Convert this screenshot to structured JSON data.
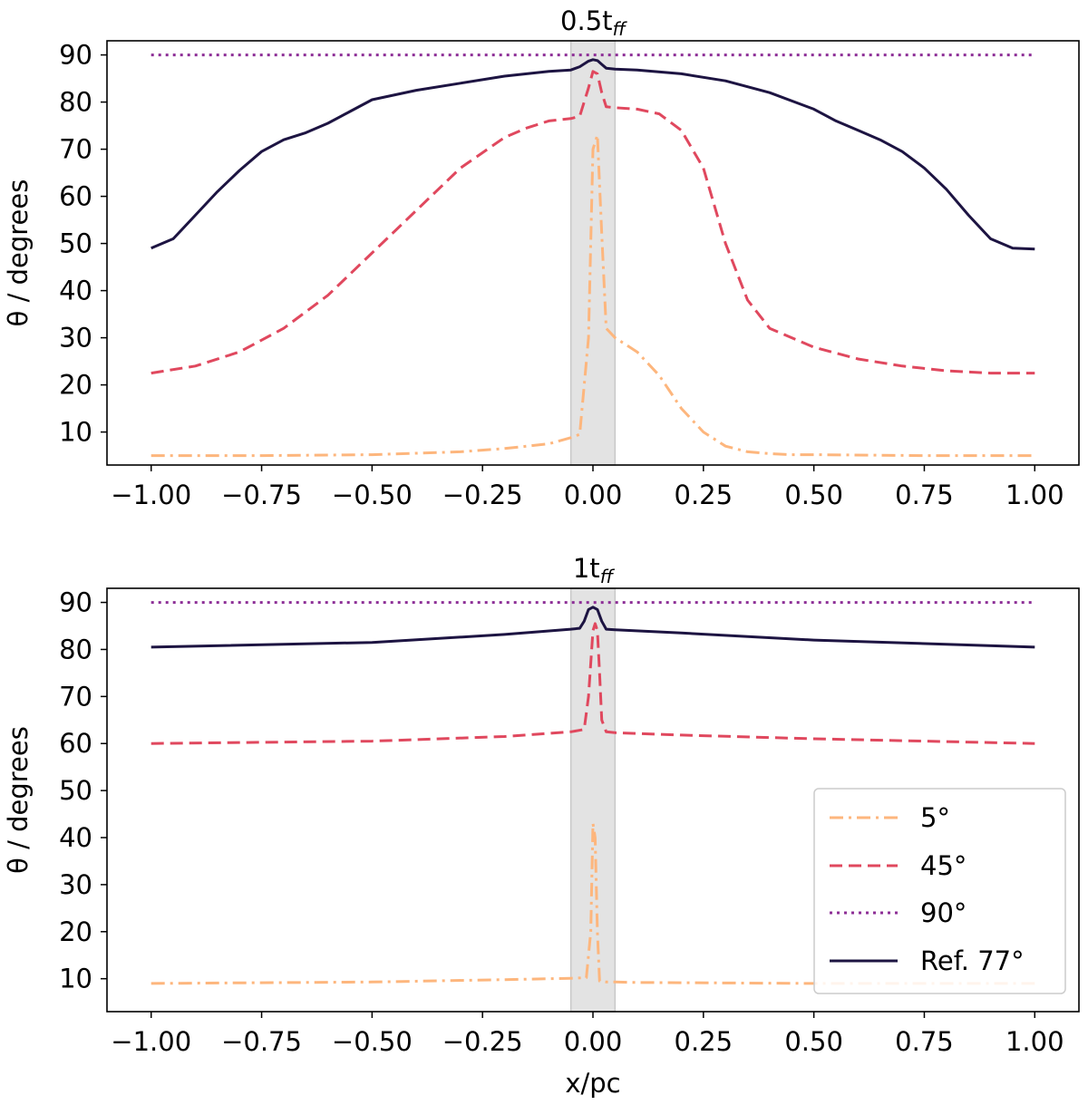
{
  "chart_data": [
    {
      "type": "line",
      "title": "0.5t",
      "title_sub": "ff",
      "xlabel": "",
      "ylabel": "θ / degrees",
      "xlim": [
        -1.1,
        1.1
      ],
      "ylim": [
        3,
        93
      ],
      "xticks": [
        -1.0,
        -0.75,
        -0.5,
        -0.25,
        0.0,
        0.25,
        0.5,
        0.75,
        1.0
      ],
      "xtick_labels": [
        "−1.00",
        "−0.75",
        "−0.50",
        "−0.25",
        "0.00",
        "0.25",
        "0.50",
        "0.75",
        "1.00"
      ],
      "yticks": [
        10,
        20,
        30,
        40,
        50,
        60,
        70,
        80,
        90
      ],
      "ytick_labels": [
        "10",
        "20",
        "30",
        "40",
        "50",
        "60",
        "70",
        "80",
        "90"
      ],
      "shaded_region": {
        "x0": -0.05,
        "x1": 0.05,
        "color": "#e3e3e3"
      },
      "series": [
        {
          "name": "5°",
          "color": "#fdb67d",
          "dash": "dashdot",
          "x": [
            -1.0,
            -0.75,
            -0.5,
            -0.3,
            -0.2,
            -0.1,
            -0.05,
            -0.03,
            -0.01,
            0.0,
            0.01,
            0.02,
            0.03,
            0.05,
            0.1,
            0.15,
            0.2,
            0.25,
            0.3,
            0.35,
            0.4,
            0.45,
            0.5,
            0.75,
            1.0
          ],
          "y": [
            5,
            5,
            5.2,
            5.8,
            6.5,
            7.5,
            8.8,
            9.5,
            30,
            70,
            73,
            52,
            32,
            30,
            27,
            22,
            15,
            10,
            7,
            5.8,
            5.4,
            5.2,
            5.2,
            5,
            5
          ]
        },
        {
          "name": "45°",
          "color": "#e0485e",
          "dash": "dashed",
          "x": [
            -1.0,
            -0.9,
            -0.8,
            -0.7,
            -0.6,
            -0.5,
            -0.4,
            -0.3,
            -0.2,
            -0.15,
            -0.1,
            -0.05,
            -0.03,
            -0.01,
            0.0,
            0.01,
            0.02,
            0.03,
            0.05,
            0.1,
            0.15,
            0.2,
            0.25,
            0.3,
            0.35,
            0.4,
            0.5,
            0.6,
            0.7,
            0.8,
            0.9,
            1.0
          ],
          "y": [
            22.5,
            24,
            27,
            32,
            39,
            48,
            57,
            66,
            72.5,
            74.5,
            76,
            76.5,
            77,
            83,
            86.5,
            86,
            82,
            79,
            78.8,
            78.5,
            77.5,
            74,
            66,
            50,
            38,
            32,
            28,
            25.5,
            24,
            23,
            22.5,
            22.5
          ]
        },
        {
          "name": "90°",
          "color": "#8d2e96",
          "dash": "dotted",
          "x": [
            -1.0,
            1.0
          ],
          "y": [
            90,
            90
          ]
        },
        {
          "name": "Ref. 77°",
          "color": "#1d1442",
          "dash": "solid",
          "x": [
            -1.0,
            -0.95,
            -0.9,
            -0.85,
            -0.8,
            -0.75,
            -0.7,
            -0.65,
            -0.6,
            -0.55,
            -0.5,
            -0.4,
            -0.3,
            -0.2,
            -0.1,
            -0.05,
            -0.03,
            -0.01,
            0.0,
            0.01,
            0.02,
            0.03,
            0.05,
            0.1,
            0.2,
            0.3,
            0.4,
            0.5,
            0.55,
            0.6,
            0.65,
            0.7,
            0.75,
            0.8,
            0.85,
            0.9,
            0.95,
            1.0
          ],
          "y": [
            49,
            51,
            56,
            61,
            65.5,
            69.5,
            72,
            73.5,
            75.5,
            78,
            80.5,
            82.5,
            84,
            85.5,
            86.5,
            86.8,
            87.5,
            88.7,
            89,
            88.8,
            88,
            87.2,
            87,
            86.8,
            86,
            84.5,
            82,
            78.5,
            76,
            74,
            72,
            69.5,
            66,
            61.5,
            56,
            51,
            49,
            48.8
          ]
        }
      ]
    },
    {
      "type": "line",
      "title": "1t",
      "title_sub": "ff",
      "xlabel": "x/pc",
      "ylabel": "θ / degrees",
      "xlim": [
        -1.1,
        1.1
      ],
      "ylim": [
        3,
        93
      ],
      "xticks": [
        -1.0,
        -0.75,
        -0.5,
        -0.25,
        0.0,
        0.25,
        0.5,
        0.75,
        1.0
      ],
      "xtick_labels": [
        "−1.00",
        "−0.75",
        "−0.50",
        "−0.25",
        "0.00",
        "0.25",
        "0.50",
        "0.75",
        "1.00"
      ],
      "yticks": [
        10,
        20,
        30,
        40,
        50,
        60,
        70,
        80,
        90
      ],
      "ytick_labels": [
        "10",
        "20",
        "30",
        "40",
        "50",
        "60",
        "70",
        "80",
        "90"
      ],
      "shaded_region": {
        "x0": -0.05,
        "x1": 0.05,
        "color": "#e3e3e3"
      },
      "legend": {
        "position": "lower-right",
        "entries": [
          "5°",
          "45°",
          "90°",
          "Ref. 77°"
        ]
      },
      "series": [
        {
          "name": "5°",
          "color": "#fdb67d",
          "dash": "dashdot",
          "x": [
            -1.0,
            -0.5,
            -0.2,
            -0.05,
            -0.015,
            -0.005,
            0.0,
            0.005,
            0.01,
            0.015,
            0.03,
            0.05,
            0.1,
            0.5,
            1.0
          ],
          "y": [
            9,
            9.3,
            9.8,
            10.1,
            10.2,
            20,
            43,
            40,
            20,
            9.5,
            9.3,
            9.3,
            9.2,
            9,
            9
          ]
        },
        {
          "name": "45°",
          "color": "#e0485e",
          "dash": "dashed",
          "x": [
            -1.0,
            -0.5,
            -0.2,
            -0.05,
            -0.02,
            -0.01,
            0.0,
            0.005,
            0.01,
            0.015,
            0.02,
            0.03,
            0.05,
            0.2,
            0.5,
            1.0
          ],
          "y": [
            60,
            60.5,
            61.5,
            62.5,
            63,
            70,
            84,
            85.5,
            84,
            75,
            65,
            62.5,
            62.3,
            61.8,
            61,
            60
          ]
        },
        {
          "name": "90°",
          "color": "#8d2e96",
          "dash": "dotted",
          "x": [
            -1.0,
            1.0
          ],
          "y": [
            90,
            90
          ]
        },
        {
          "name": "Ref. 77°",
          "color": "#1d1442",
          "dash": "solid",
          "x": [
            -1.0,
            -0.5,
            -0.2,
            -0.05,
            -0.03,
            -0.02,
            -0.01,
            0.0,
            0.01,
            0.02,
            0.03,
            0.05,
            0.2,
            0.5,
            1.0
          ],
          "y": [
            80.5,
            81.5,
            83.2,
            84.3,
            84.5,
            86,
            88.5,
            89,
            88.5,
            86,
            84.3,
            84.2,
            83.5,
            82,
            80.5
          ]
        }
      ]
    }
  ]
}
